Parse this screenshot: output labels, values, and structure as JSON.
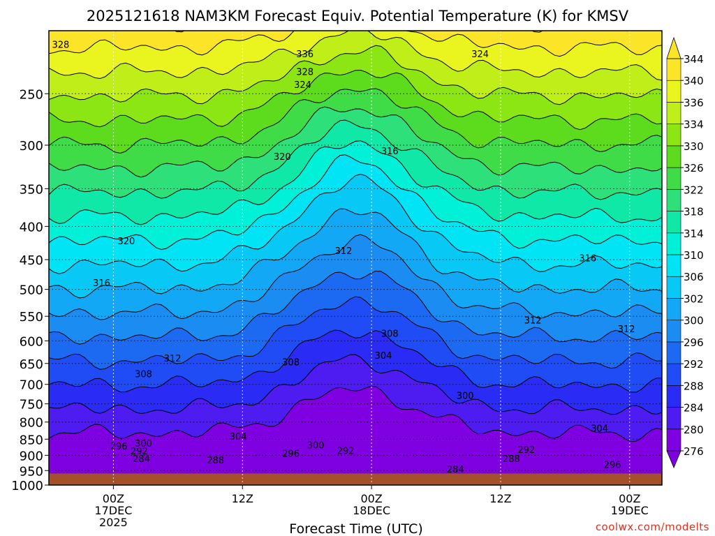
{
  "chart_data": {
    "type": "heatmap",
    "title": "2025121618 NAM3KM Forecast Equiv. Potential Temperature (K) for KMSV",
    "xlabel": "Forecast Time (UTC)",
    "ylabel": "",
    "units": "K",
    "y_scale": "log",
    "y_inverted": true,
    "ylim": [
      1000,
      200
    ],
    "y_ticks": [
      250,
      300,
      350,
      400,
      450,
      500,
      550,
      600,
      650,
      700,
      750,
      800,
      850,
      900,
      950,
      1000
    ],
    "xlim": [
      "2025-12-16T18:00Z",
      "2025-12-19T03:00Z"
    ],
    "x_ticks": [
      {
        "time": "2025-12-17T00:00Z",
        "lines": [
          "00Z",
          "17DEC",
          "2025"
        ]
      },
      {
        "time": "2025-12-17T12:00Z",
        "lines": [
          "12Z"
        ]
      },
      {
        "time": "2025-12-18T00:00Z",
        "lines": [
          "00Z",
          "18DEC"
        ]
      },
      {
        "time": "2025-12-18T12:00Z",
        "lines": [
          "12Z"
        ]
      },
      {
        "time": "2025-12-19T00:00Z",
        "lines": [
          "00Z",
          "19DEC"
        ]
      }
    ],
    "grid": true,
    "surface_pressure_hPa": 960,
    "colorbar": {
      "levels": [
        276,
        280,
        284,
        288,
        292,
        296,
        300,
        302,
        306,
        310,
        314,
        318,
        322,
        326,
        330,
        334,
        336,
        340,
        344
      ],
      "colors": [
        "#7f00e0",
        "#4e1cf0",
        "#2a2cf5",
        "#1f4cf5",
        "#1c6af2",
        "#1a8cf2",
        "#12a8f5",
        "#08c8f5",
        "#00e4f5",
        "#00f0d8",
        "#10e8a8",
        "#2ee07a",
        "#40dc48",
        "#5cdc1c",
        "#8ce614",
        "#c0ee18",
        "#eaf41e",
        "#fce428"
      ],
      "extend": "both"
    },
    "contour_labels": [
      {
        "x": "2025-12-16T19:06Z",
        "p": 210,
        "value": "328"
      },
      {
        "x": "2025-12-17T17:48Z",
        "p": 217,
        "value": "336"
      },
      {
        "x": "2025-12-17T17:48Z",
        "p": 231,
        "value": "328"
      },
      {
        "x": "2025-12-17T17:36Z",
        "p": 242,
        "value": "324"
      },
      {
        "x": "2025-12-18T10:06Z",
        "p": 217,
        "value": "324"
      },
      {
        "x": "2025-12-17T15:42Z",
        "p": 312,
        "value": "320"
      },
      {
        "x": "2025-12-18T01:42Z",
        "p": 306,
        "value": "316"
      },
      {
        "x": "2025-12-17T01:12Z",
        "p": 421,
        "value": "320"
      },
      {
        "x": "2025-12-16T22:54Z",
        "p": 488,
        "value": "316"
      },
      {
        "x": "2025-12-17T21:24Z",
        "p": 436,
        "value": "312"
      },
      {
        "x": "2025-12-18T20:06Z",
        "p": 447,
        "value": "316"
      },
      {
        "x": "2025-12-18T01:42Z",
        "p": 584,
        "value": "308"
      },
      {
        "x": "2025-12-18T15:00Z",
        "p": 557,
        "value": "312"
      },
      {
        "x": "2025-12-18T23:42Z",
        "p": 575,
        "value": "312"
      },
      {
        "x": "2025-12-17T05:30Z",
        "p": 638,
        "value": "312"
      },
      {
        "x": "2025-12-17T02:48Z",
        "p": 674,
        "value": "308"
      },
      {
        "x": "2025-12-18T01:06Z",
        "p": 631,
        "value": "304"
      },
      {
        "x": "2025-12-17T16:30Z",
        "p": 646,
        "value": "308"
      },
      {
        "x": "2025-12-18T08:42Z",
        "p": 728,
        "value": "300"
      },
      {
        "x": "2025-12-18T21:12Z",
        "p": 818,
        "value": "304"
      },
      {
        "x": "2025-12-17T11:36Z",
        "p": 841,
        "value": "304"
      },
      {
        "x": "2025-12-17T00:30Z",
        "p": 871,
        "value": "296"
      },
      {
        "x": "2025-12-17T02:48Z",
        "p": 862,
        "value": "300"
      },
      {
        "x": "2025-12-17T02:24Z",
        "p": 886,
        "value": "292"
      },
      {
        "x": "2025-12-17T18:48Z",
        "p": 867,
        "value": "300"
      },
      {
        "x": "2025-12-17T21:36Z",
        "p": 885,
        "value": "292"
      },
      {
        "x": "2025-12-17T16:30Z",
        "p": 894,
        "value": "296"
      },
      {
        "x": "2025-12-18T14:24Z",
        "p": 881,
        "value": "292"
      },
      {
        "x": "2025-12-17T02:36Z",
        "p": 910,
        "value": "284"
      },
      {
        "x": "2025-12-17T09:30Z",
        "p": 915,
        "value": "288"
      },
      {
        "x": "2025-12-18T13:00Z",
        "p": 910,
        "value": "288"
      },
      {
        "x": "2025-12-18T07:48Z",
        "p": 945,
        "value": "284"
      },
      {
        "x": "2025-12-18T22:24Z",
        "p": 930,
        "value": "296"
      }
    ]
  },
  "credit": "coolwx.com/modelts"
}
